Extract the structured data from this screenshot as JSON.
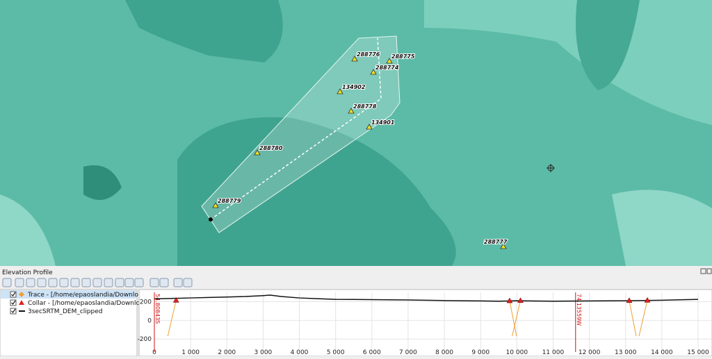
{
  "map": {
    "points": [
      {
        "label": "288776"
      },
      {
        "label": "288775"
      },
      {
        "label": "288774"
      },
      {
        "label": "134902"
      },
      {
        "label": "288778"
      },
      {
        "label": "134901"
      },
      {
        "label": "288780"
      },
      {
        "label": "288779"
      },
      {
        "label": "288777"
      }
    ]
  },
  "panel": {
    "title": "Elevation Profile",
    "layers": [
      "Trace - [/home/epaoslandia/Downloads/o",
      "Collar - [/home/epaoslandia/Downloads/o",
      "3secSRTM_DEM_clipped"
    ]
  },
  "profile": {
    "xlim": [
      0,
      15600
    ],
    "ylim": [
      -340,
      300
    ],
    "xticks": [
      0,
      {
        "value": 1000,
        "label": "1 000"
      },
      {
        "value": 2000,
        "label": "2 000"
      },
      {
        "value": 3000,
        "label": "3 000"
      },
      {
        "value": 4000,
        "label": "4 000"
      },
      {
        "value": 5000,
        "label": "5 000"
      },
      {
        "value": 6000,
        "label": "6 000"
      },
      {
        "value": 7000,
        "label": "7 000"
      },
      {
        "value": 8000,
        "label": "8 000"
      },
      {
        "value": 9000,
        "label": "9 000"
      },
      {
        "value": 10000,
        "label": "10 000"
      },
      {
        "value": 11000,
        "label": "11 000"
      },
      {
        "value": 12000,
        "label": "12 000"
      },
      {
        "value": 13000,
        "label": "13 000"
      },
      {
        "value": 14000,
        "label": "14 000"
      },
      {
        "value": 15000,
        "label": "15 000"
      }
    ],
    "yticks": [
      -200,
      0,
      200
    ],
    "elevation": {
      "color": "#111111",
      "x": [
        0,
        500,
        1000,
        1500,
        2000,
        2500,
        3000,
        3200,
        3500,
        4000,
        4500,
        5000,
        6000,
        7000,
        8000,
        9000,
        9500,
        10000,
        11000,
        12000,
        13000,
        14000,
        15000
      ],
      "y": [
        230,
        235,
        240,
        245,
        250,
        255,
        265,
        270,
        255,
        240,
        232,
        225,
        222,
        218,
        212,
        208,
        205,
        210,
        205,
        208,
        210,
        215,
        225
      ]
    },
    "collars": {
      "color": "#e02020",
      "x": [
        600,
        9800,
        10100,
        13100,
        13600
      ],
      "y": [
        215,
        210,
        212,
        212,
        215
      ]
    },
    "markers": [
      {
        "x": 0,
        "label": "54.80843S"
      },
      {
        "x": 11620,
        "label": "74.13559W"
      }
    ]
  }
}
